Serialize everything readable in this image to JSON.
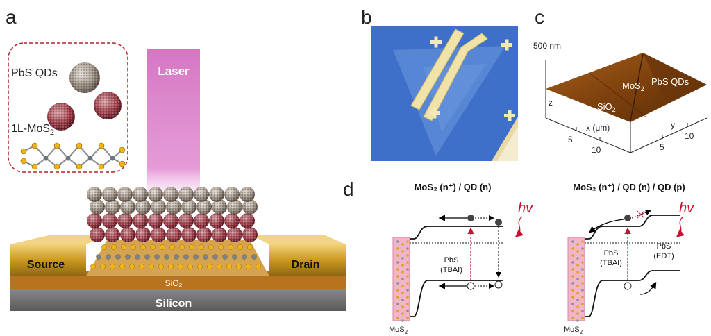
{
  "panels": {
    "a": {
      "letter": "a",
      "inset": {
        "qd_label": "PbS QDs",
        "mos2_label": "1L-MoS",
        "mos2_sub": "2"
      },
      "laser_label": "Laser",
      "source_label": "Source",
      "drain_label": "Drain",
      "sio2_label": "SiO₂",
      "silicon_label": "Silicon"
    },
    "b": {
      "letter": "b"
    },
    "c": {
      "letter": "c",
      "z_scale": "500 nm",
      "z_axis": "z",
      "x_axis": "x (μm)",
      "y_axis": "y",
      "x_ticks": [
        "5",
        "10"
      ],
      "y_ticks": [
        "5",
        "10"
      ],
      "mos2_label": "MoS",
      "mos2_sub": "2",
      "qd_label": "PbS QDs",
      "sio2_label": "SiO",
      "sio2_sub": "2"
    },
    "d": {
      "letter": "d",
      "left_title": "MoS₂ (n⁺) / QD (n)",
      "right_title": "MoS₂ (n⁺) / QD (n) / QD (p)",
      "hv": "hv",
      "pbs_tbai": [
        "PbS",
        "(TBAI)"
      ],
      "pbs_edt": [
        "PbS",
        "(EDT)"
      ],
      "mos2_bottom": "MoS",
      "mos2_bottom_sub": "2"
    }
  },
  "colors": {
    "laser": "#d36fc0",
    "gold": "#c89a1e",
    "substrate": "#7a7a7a",
    "afm": "#8a4a12",
    "optical_bg": "#3f6fc7",
    "hv_red": "#c8102e"
  }
}
